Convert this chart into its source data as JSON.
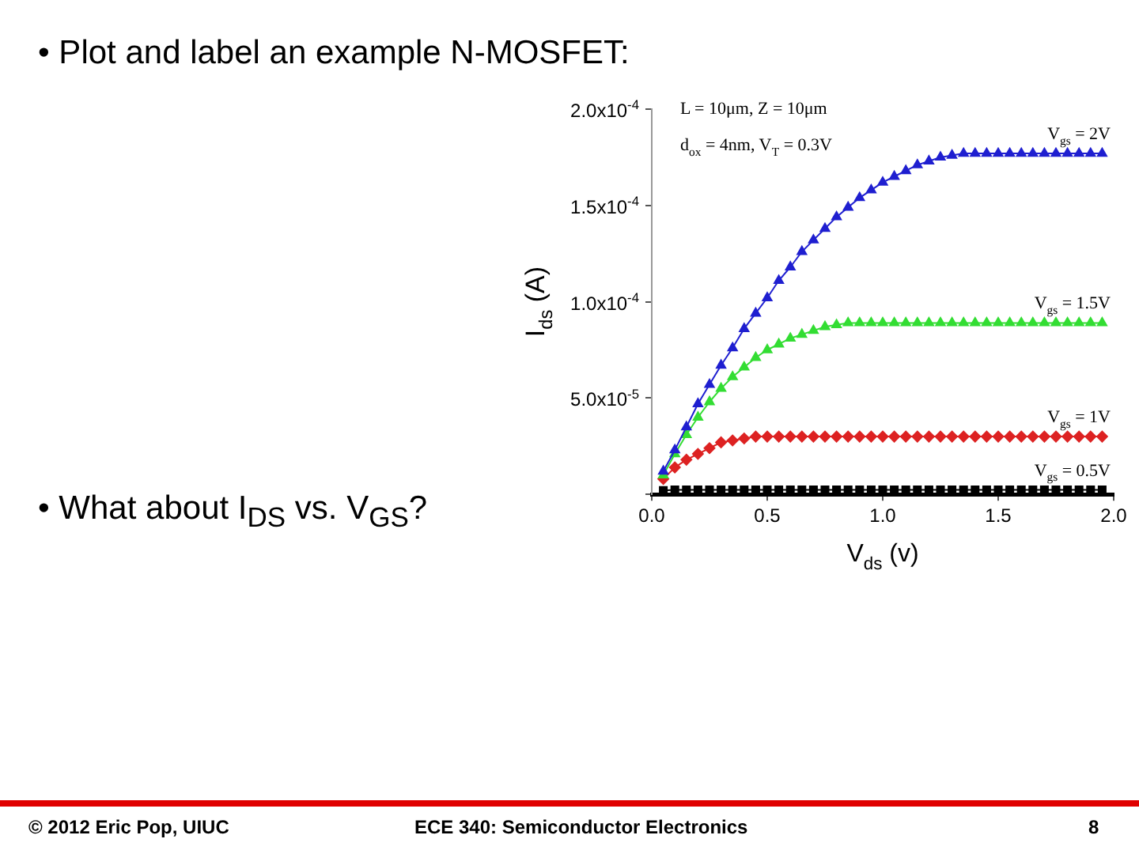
{
  "chart_data": {
    "type": "line",
    "title": "• Plot and label an example N-MOSFET:",
    "xlabel": "V$_{ds}$ (v)",
    "ylabel": "I$_{ds}$ (A)",
    "x": [
      0.05,
      0.1,
      0.15,
      0.2,
      0.25,
      0.3,
      0.35,
      0.4,
      0.45,
      0.5,
      0.55,
      0.6,
      0.65,
      0.7,
      0.75,
      0.8,
      0.85,
      0.9,
      0.95,
      1.0,
      1.05,
      1.1,
      1.15,
      1.2,
      1.25,
      1.3,
      1.35,
      1.4,
      1.45,
      1.5,
      1.55,
      1.6,
      1.65,
      1.7,
      1.75,
      1.8,
      1.85,
      1.9,
      1.95
    ],
    "series": [
      {
        "name": "V$_{gs}$ = 2V",
        "color": "#1f1fd0",
        "marker": "triangle",
        "values": [
          1.2e-05,
          2.3e-05,
          3.5e-05,
          4.7e-05,
          5.7e-05,
          6.7e-05,
          7.6e-05,
          8.6e-05,
          9.4e-05,
          0.000102,
          0.000111,
          0.000118,
          0.000126,
          0.000132,
          0.000138,
          0.000144,
          0.000149,
          0.000154,
          0.000158,
          0.000162,
          0.000165,
          0.000168,
          0.000171,
          0.000173,
          0.000175,
          0.000176,
          0.000177,
          0.000177,
          0.000177,
          0.000177,
          0.000177,
          0.000177,
          0.000177,
          0.000177,
          0.000177,
          0.000177,
          0.000177,
          0.000177,
          0.000177
        ]
      },
      {
        "name": "V$_{gs}$ = 1.5V",
        "color": "#33dd33",
        "marker": "triangle",
        "values": [
          1e-05,
          2.1e-05,
          3.1e-05,
          4e-05,
          4.8e-05,
          5.5e-05,
          6.1e-05,
          6.6e-05,
          7.1e-05,
          7.5e-05,
          7.8e-05,
          8.1e-05,
          8.3e-05,
          8.5e-05,
          8.7e-05,
          8.8e-05,
          8.9e-05,
          8.9e-05,
          8.9e-05,
          8.9e-05,
          8.9e-05,
          8.9e-05,
          8.9e-05,
          8.9e-05,
          8.9e-05,
          8.9e-05,
          8.9e-05,
          8.9e-05,
          8.9e-05,
          8.9e-05,
          8.9e-05,
          8.9e-05,
          8.9e-05,
          8.9e-05,
          8.9e-05,
          8.9e-05,
          8.9e-05,
          8.9e-05,
          8.9e-05
        ]
      },
      {
        "name": "V$_{gs}$ = 1V",
        "color": "#dd2222",
        "marker": "diamond",
        "values": [
          8e-06,
          1.4e-05,
          1.8e-05,
          2.1e-05,
          2.4e-05,
          2.7e-05,
          2.8e-05,
          2.9e-05,
          3e-05,
          3e-05,
          3e-05,
          3e-05,
          3e-05,
          3e-05,
          3e-05,
          3e-05,
          3e-05,
          3e-05,
          3e-05,
          3e-05,
          3e-05,
          3e-05,
          3e-05,
          3e-05,
          3e-05,
          3e-05,
          3e-05,
          3e-05,
          3e-05,
          3e-05,
          3e-05,
          3e-05,
          3e-05,
          3e-05,
          3e-05,
          3e-05,
          3e-05,
          3e-05,
          3e-05
        ]
      },
      {
        "name": "V$_{gs}$ = 0.5V",
        "color": "#000000",
        "marker": "square",
        "values": [
          2e-06,
          2.3e-06,
          2.3e-06,
          2.3e-06,
          2.3e-06,
          2.3e-06,
          2.3e-06,
          2.3e-06,
          2.3e-06,
          2.3e-06,
          2.3e-06,
          2.3e-06,
          2.3e-06,
          2.3e-06,
          2.3e-06,
          2.3e-06,
          2.3e-06,
          2.3e-06,
          2.3e-06,
          2.3e-06,
          2.3e-06,
          2.3e-06,
          2.3e-06,
          2.3e-06,
          2.3e-06,
          2.3e-06,
          2.3e-06,
          2.3e-06,
          2.3e-06,
          2.3e-06,
          2.3e-06,
          2.3e-06,
          2.3e-06,
          2.3e-06,
          2.3e-06,
          2.3e-06,
          2.3e-06,
          2.3e-06,
          2.3e-06
        ]
      }
    ],
    "xlim": [
      0,
      2.0
    ],
    "xticks": [
      {
        "value": 0,
        "label": "0.0"
      },
      {
        "value": 0.5,
        "label": "0.5"
      },
      {
        "value": 1.0,
        "label": "1.0"
      },
      {
        "value": 1.5,
        "label": "1.5"
      },
      {
        "value": 2.0,
        "label": "2.0"
      }
    ],
    "ylim": [
      0,
      0.0002
    ],
    "yticks": [
      {
        "value": 0,
        "label": null
      },
      {
        "value": 5e-05,
        "label": "5.0x10$^{-5}$"
      },
      {
        "value": 0.0001,
        "label": "1.0x10$^{-4}$"
      },
      {
        "value": 0.00015,
        "label": "1.5x10$^{-4}$"
      },
      {
        "value": 0.0002,
        "label": "2.0x10$^{-4}$"
      }
    ],
    "grid": false,
    "legend": false,
    "line_style": "solid",
    "annotations": [
      "L = 10μm, Z = 10μm",
      "d$_{ox}$ = 4nm, V$_{T}$ = 0.3V",
      "• What about I$_{DS}$ vs. V$_{GS}$?",
      "© 2012 Eric Pop, UIUC",
      "ECE 340: Semiconductor Electronics",
      "8"
    ]
  }
}
